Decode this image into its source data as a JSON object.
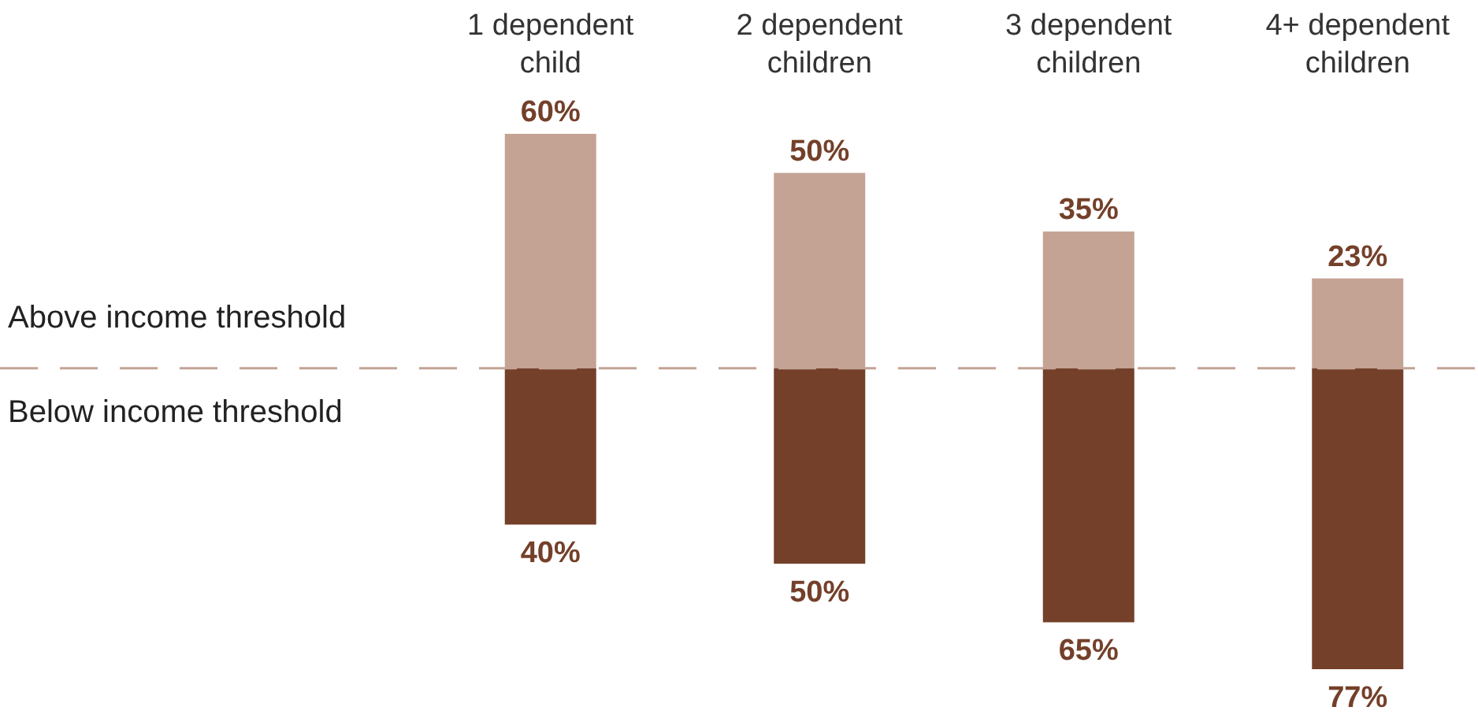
{
  "chart_data": {
    "type": "bar",
    "stacked": true,
    "categories": [
      "1 dependent child",
      "2 dependent children",
      "3 dependent children",
      "4+ dependent children"
    ],
    "series": [
      {
        "color": "#c4a395",
        "values": [
          60,
          50,
          35,
          23
        ],
        "value_labels": [
          "60%",
          "50%",
          "35%",
          "23%"
        ]
      },
      {
        "color": "#74402a",
        "values": [
          -40,
          -50,
          -65,
          -77
        ]
      }
    ],
    "annotations": [
      "Above income threshold",
      "Below income threshold",
      {
        "text": "40%",
        "x": "1 dependent child",
        "y": -40
      },
      {
        "text": "50%",
        "x": "2 dependent children",
        "y": -50
      },
      {
        "text": "65%",
        "x": "3 dependent children",
        "y": -65
      },
      {
        "text": "77%",
        "x": "4+ dependent children",
        "y": -77
      }
    ],
    "ref_lines": [
      {
        "axis": "y",
        "value": 0,
        "color": "#c4a395",
        "line_style": "dashed"
      }
    ]
  }
}
